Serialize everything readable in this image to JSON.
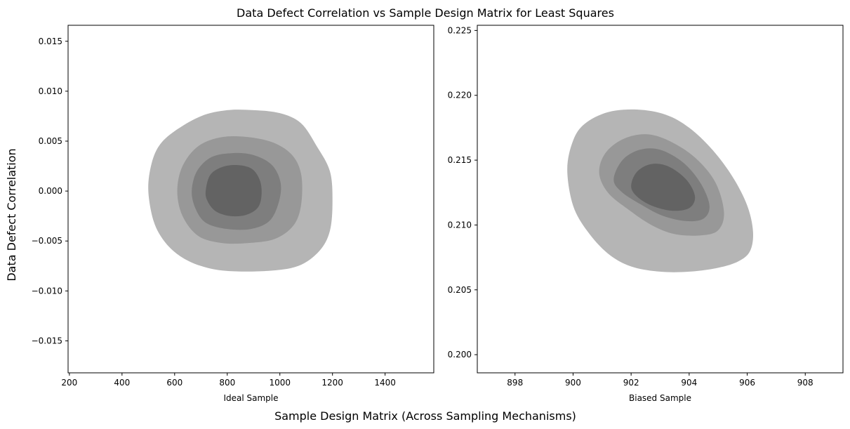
{
  "figure": {
    "title": "Data Defect Correlation vs Sample Design Matrix for Least Squares",
    "supxlabel": "Sample Design Matrix (Across Sampling Mechanisms)",
    "supylabel": "Data Defect Correlation"
  },
  "chart_data": [
    {
      "type": "contour",
      "subtitle": "",
      "xlabel": "Ideal Sample",
      "ylabel": "",
      "xlim": [
        195,
        1585
      ],
      "ylim": [
        -0.0182,
        0.0166
      ],
      "xticks": [
        200,
        400,
        600,
        800,
        1000,
        1200,
        1400
      ],
      "yticks": [
        -0.015,
        -0.01,
        -0.005,
        0.0,
        0.005,
        0.01,
        0.015
      ],
      "ytick_labels": [
        "−0.015",
        "−0.010",
        "−0.005",
        "0.000",
        "0.005",
        "0.010",
        "0.015"
      ],
      "grid": false,
      "levels": [
        {
          "color": "#b5b5b5",
          "points": [
            [
              500,
              0.0
            ],
            [
              510,
              0.0025
            ],
            [
              540,
              0.0045
            ],
            [
              600,
              0.006
            ],
            [
              700,
              0.0075
            ],
            [
              800,
              0.0081
            ],
            [
              900,
              0.0081
            ],
            [
              1000,
              0.0078
            ],
            [
              1080,
              0.0068
            ],
            [
              1140,
              0.0045
            ],
            [
              1190,
              0.002
            ],
            [
              1200,
              -0.001
            ],
            [
              1190,
              -0.004
            ],
            [
              1150,
              -0.006
            ],
            [
              1070,
              -0.0075
            ],
            [
              950,
              -0.008
            ],
            [
              800,
              -0.008
            ],
            [
              700,
              -0.0075
            ],
            [
              620,
              -0.0065
            ],
            [
              560,
              -0.005
            ],
            [
              520,
              -0.003
            ]
          ]
        },
        {
          "color": "#989898",
          "points": [
            [
              610,
              0.0
            ],
            [
              630,
              0.0025
            ],
            [
              690,
              0.0045
            ],
            [
              780,
              0.0054
            ],
            [
              880,
              0.0054
            ],
            [
              980,
              0.0048
            ],
            [
              1050,
              0.0035
            ],
            [
              1082,
              0.0015
            ],
            [
              1080,
              -0.0015
            ],
            [
              1050,
              -0.0035
            ],
            [
              980,
              -0.0048
            ],
            [
              880,
              -0.0052
            ],
            [
              780,
              -0.0052
            ],
            [
              690,
              -0.0045
            ],
            [
              630,
              -0.0025
            ]
          ]
        },
        {
          "color": "#7e7e7e",
          "points": [
            [
              665,
              0.0
            ],
            [
              685,
              0.002
            ],
            [
              740,
              0.0034
            ],
            [
              820,
              0.0038
            ],
            [
              900,
              0.0036
            ],
            [
              970,
              0.0026
            ],
            [
              1003,
              0.0008
            ],
            [
              995,
              -0.0012
            ],
            [
              960,
              -0.003
            ],
            [
              890,
              -0.0038
            ],
            [
              800,
              -0.0038
            ],
            [
              720,
              -0.0032
            ],
            [
              680,
              -0.0018
            ]
          ]
        },
        {
          "color": "#636363",
          "points": [
            [
              718,
              0.0
            ],
            [
              735,
              0.0016
            ],
            [
              780,
              0.0024
            ],
            [
              840,
              0.0026
            ],
            [
              895,
              0.0022
            ],
            [
              925,
              0.001
            ],
            [
              930,
              -0.0005
            ],
            [
              915,
              -0.0017
            ],
            [
              870,
              -0.0024
            ],
            [
              810,
              -0.0025
            ],
            [
              755,
              -0.002
            ],
            [
              725,
              -0.001
            ]
          ]
        }
      ]
    },
    {
      "type": "contour",
      "subtitle": "",
      "xlabel": "Biased Sample",
      "ylabel": "",
      "xlim": [
        896.7,
        909.3
      ],
      "ylim": [
        0.1986,
        0.2254
      ],
      "xticks": [
        898,
        900,
        902,
        904,
        906,
        908
      ],
      "yticks": [
        0.2,
        0.205,
        0.21,
        0.215,
        0.22,
        0.225
      ],
      "ytick_labels": [
        "0.200",
        "0.205",
        "0.210",
        "0.215",
        "0.220",
        "0.225"
      ],
      "grid": false,
      "levels": [
        {
          "color": "#b5b5b5",
          "points": [
            [
              899.8,
              0.2143
            ],
            [
              900.0,
              0.2165
            ],
            [
              900.4,
              0.2178
            ],
            [
              901.2,
              0.2187
            ],
            [
              902.2,
              0.2189
            ],
            [
              903.2,
              0.2185
            ],
            [
              904.0,
              0.2175
            ],
            [
              904.8,
              0.2158
            ],
            [
              905.5,
              0.2137
            ],
            [
              906.0,
              0.2115
            ],
            [
              906.2,
              0.2095
            ],
            [
              906.1,
              0.208
            ],
            [
              905.7,
              0.2072
            ],
            [
              905.0,
              0.2067
            ],
            [
              904.0,
              0.2064
            ],
            [
              903.0,
              0.2064
            ],
            [
              902.0,
              0.2068
            ],
            [
              901.2,
              0.2078
            ],
            [
              900.5,
              0.2095
            ],
            [
              900.0,
              0.2115
            ]
          ]
        },
        {
          "color": "#989898",
          "points": [
            [
              900.9,
              0.214
            ],
            [
              901.1,
              0.2155
            ],
            [
              901.7,
              0.2166
            ],
            [
              902.5,
              0.217
            ],
            [
              903.3,
              0.2165
            ],
            [
              904.2,
              0.2152
            ],
            [
              904.9,
              0.2133
            ],
            [
              905.2,
              0.211
            ],
            [
              905.0,
              0.2096
            ],
            [
              904.4,
              0.2092
            ],
            [
              903.5,
              0.2093
            ],
            [
              902.7,
              0.21
            ],
            [
              901.9,
              0.2112
            ],
            [
              901.2,
              0.2125
            ]
          ]
        },
        {
          "color": "#7e7e7e",
          "points": [
            [
              901.4,
              0.2135
            ],
            [
              901.7,
              0.215
            ],
            [
              902.3,
              0.2158
            ],
            [
              903.0,
              0.2158
            ],
            [
              903.8,
              0.2148
            ],
            [
              904.4,
              0.2132
            ],
            [
              904.7,
              0.2115
            ],
            [
              904.5,
              0.2105
            ],
            [
              903.9,
              0.2103
            ],
            [
              903.1,
              0.2107
            ],
            [
              902.4,
              0.2115
            ],
            [
              901.7,
              0.2125
            ]
          ]
        },
        {
          "color": "#636363",
          "points": [
            [
              902.0,
              0.213
            ],
            [
              902.2,
              0.2141
            ],
            [
              902.7,
              0.2147
            ],
            [
              903.3,
              0.2145
            ],
            [
              903.9,
              0.2135
            ],
            [
              904.2,
              0.2122
            ],
            [
              904.0,
              0.2113
            ],
            [
              903.4,
              0.2111
            ],
            [
              902.7,
              0.2115
            ],
            [
              902.2,
              0.2122
            ]
          ]
        }
      ]
    }
  ]
}
